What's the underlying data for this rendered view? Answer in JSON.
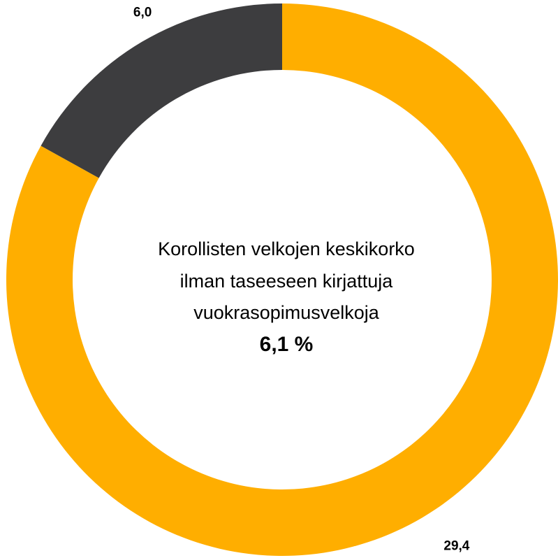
{
  "chart_data": {
    "type": "donut",
    "values": [
      29.4,
      6.0
    ],
    "value_labels": [
      "29,4",
      "6,0"
    ],
    "colors": [
      "#ffae00",
      "#3d3d3f"
    ],
    "center_text": [
      "Korollisten velkojen keskikorko",
      "ilman taseeseen kirjattuja",
      "vuokrasopimusvelkoja"
    ],
    "center_value": "6,1 %"
  }
}
